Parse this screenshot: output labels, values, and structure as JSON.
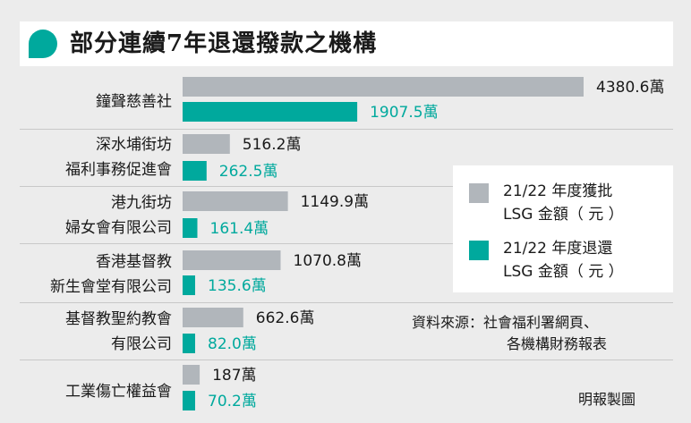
{
  "title": "部分連續7年退還撥款之機構",
  "colors": {
    "approved": "#b1b6bb",
    "returned": "#00a99d",
    "returned_text": "#00a99d",
    "accent": "#00a99d"
  },
  "chart_data": {
    "type": "bar",
    "orientation": "horizontal",
    "categories": [
      [
        "鐘聲慈善社"
      ],
      [
        "深水埔街坊",
        "福利事務促進會"
      ],
      [
        "港九街坊",
        "婦女會有限公司"
      ],
      [
        "香港基督教",
        "新生會堂有限公司"
      ],
      [
        "基督教聖約教會",
        "有限公司"
      ],
      [
        "工業傷亡權益會"
      ]
    ],
    "series": [
      {
        "name": "21/22年度獲批LSG金額（元）",
        "values": [
          4380.6,
          516.2,
          1149.9,
          1070.8,
          662.6,
          187
        ],
        "labels": [
          "4380.6萬",
          "516.2萬",
          "1149.9萬",
          "1070.8萬",
          "662.6萬",
          "187萬"
        ]
      },
      {
        "name": "21/22年度退還LSG金額（元）",
        "values": [
          1907.5,
          262.5,
          161.4,
          135.6,
          82.0,
          70.2
        ],
        "labels": [
          "1907.5萬",
          "262.5萬",
          "161.4萬",
          "135.6萬",
          "82.0萬",
          "70.2萬"
        ]
      }
    ],
    "unit": "萬",
    "legend_position": "right"
  },
  "legend": {
    "approved_line1": "21/22 年度獲批",
    "approved_line2": "LSG 金額（ 元 ）",
    "returned_line1": "21/22 年度退還",
    "returned_line2": "LSG 金額（ 元 ）"
  },
  "source": {
    "line1": "資料來源：社會福利署網頁、",
    "line2": "各機構財務報表"
  },
  "credit": "明報製圖"
}
